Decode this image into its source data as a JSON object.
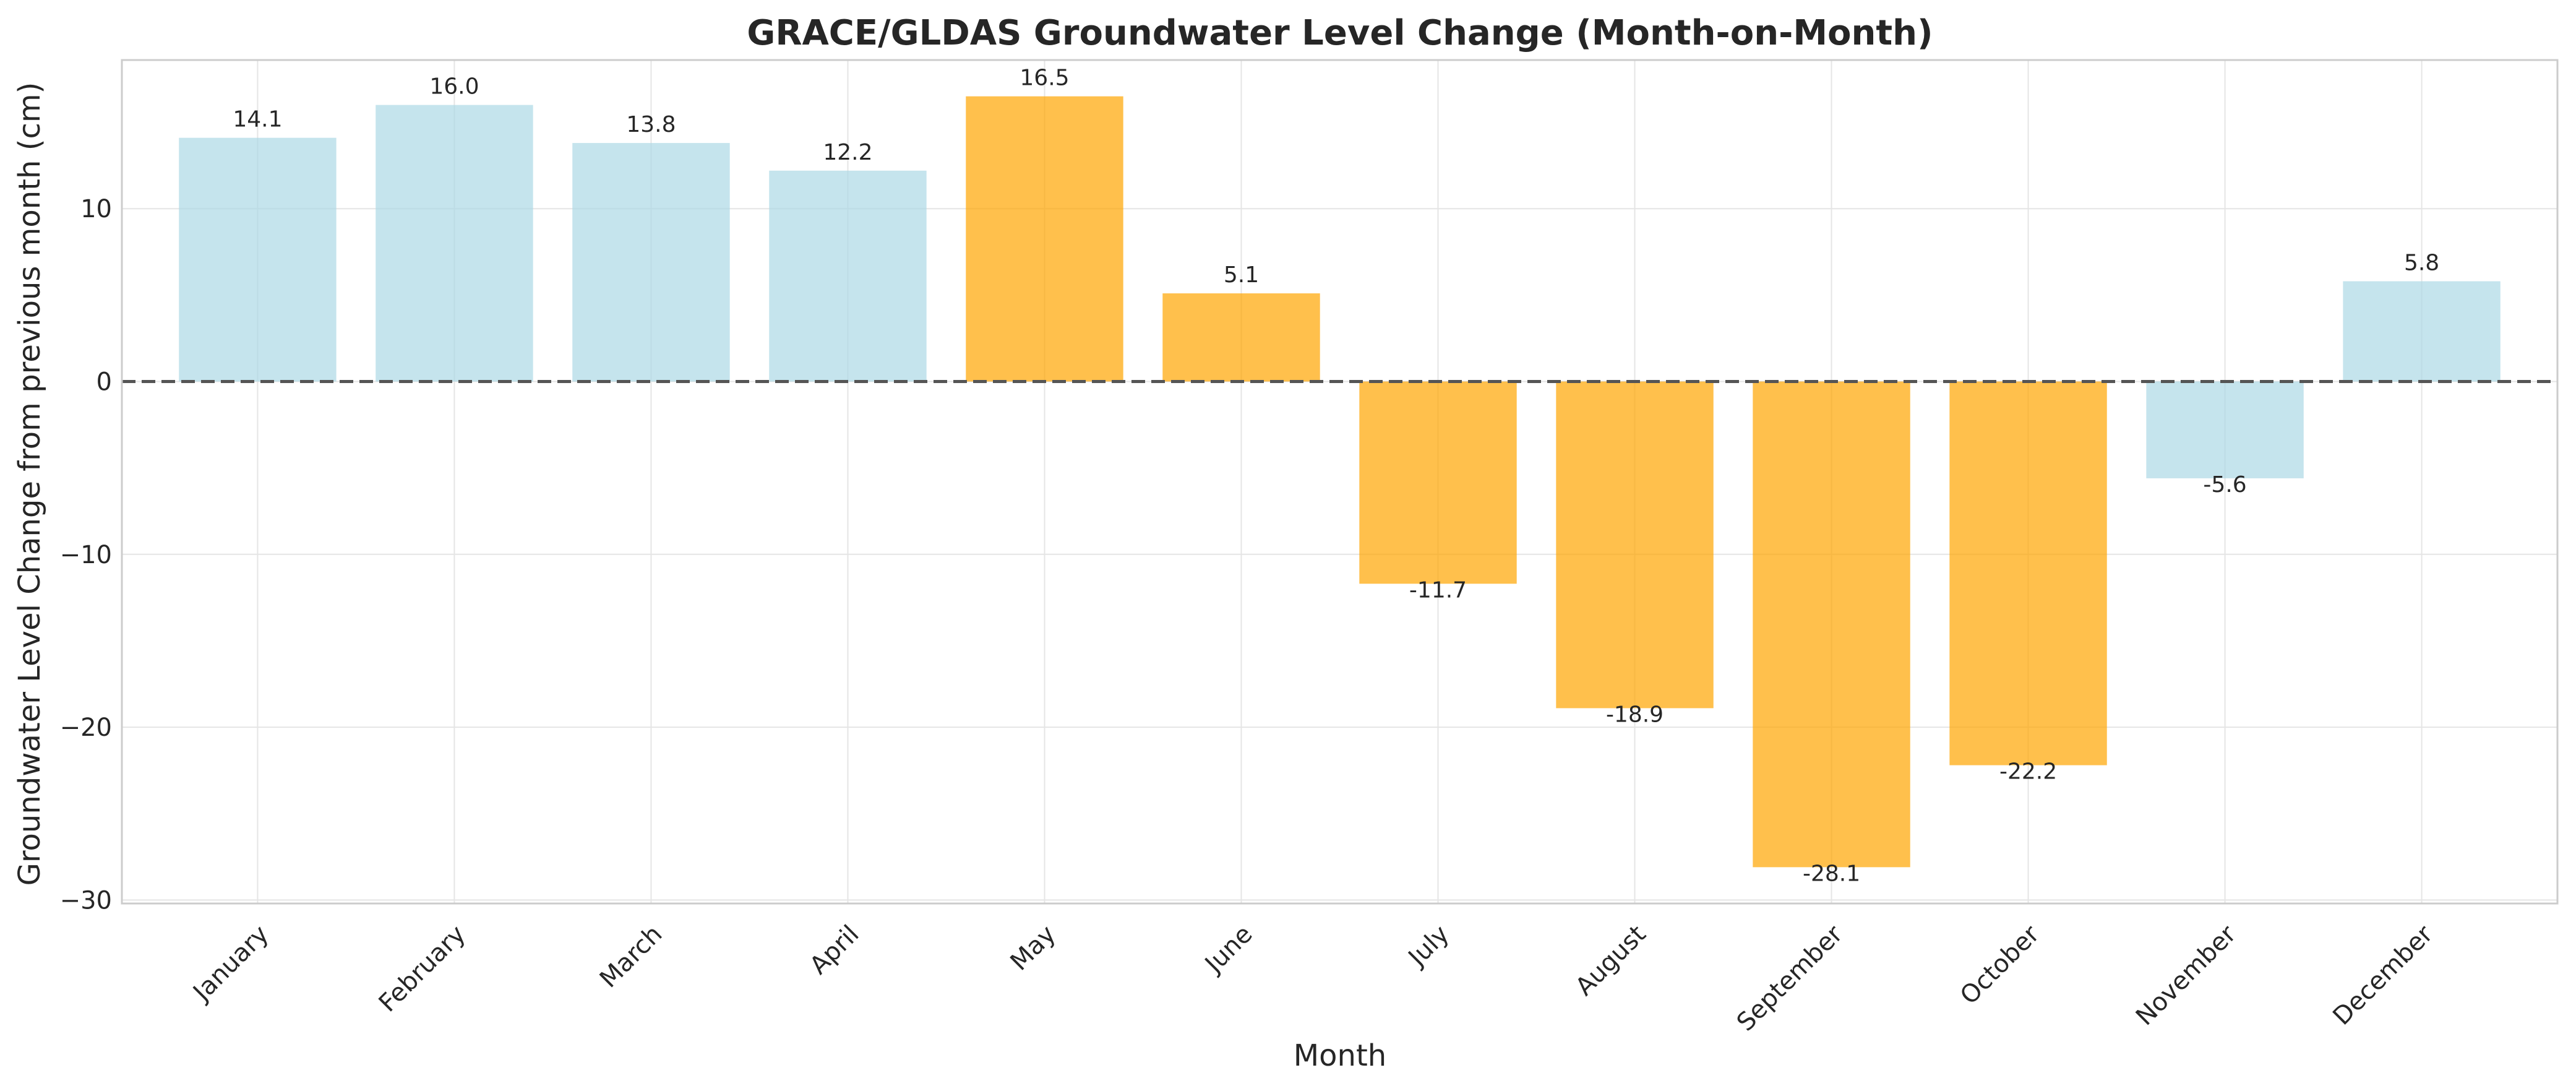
{
  "chart_data": {
    "type": "bar",
    "title": "GRACE/GLDAS Groundwater Level Change (Month-on-Month)",
    "xlabel": "Month",
    "ylabel": "Groundwater Level Change from previous month (cm)",
    "categories": [
      "January",
      "February",
      "March",
      "April",
      "May",
      "June",
      "July",
      "August",
      "September",
      "October",
      "November",
      "December"
    ],
    "values": [
      14.1,
      16.0,
      13.8,
      12.2,
      16.5,
      5.1,
      -11.7,
      -18.9,
      -28.1,
      -22.2,
      -5.6,
      5.8
    ],
    "data_labels": [
      "14.1",
      "16.0",
      "13.8",
      "12.2",
      "16.5",
      "5.1",
      "-11.7",
      "-18.9",
      "-28.1",
      "-22.2",
      "-5.6",
      "5.8"
    ],
    "highlighted": [
      false,
      false,
      false,
      false,
      true,
      true,
      true,
      true,
      true,
      true,
      false,
      false
    ],
    "ylim": [
      -30.2,
      18.6
    ],
    "yticks": [
      -30,
      -20,
      -10,
      0,
      10
    ],
    "ytick_labels": [
      "−30",
      "−20",
      "−10",
      "0",
      "10"
    ],
    "grid": true,
    "reference_line": 0,
    "colors": {
      "normal": "#add8e6",
      "highlight": "#ffa500",
      "reference_line": "#555555",
      "grid": "#e5e5e5",
      "frame": "#cccccc"
    }
  }
}
